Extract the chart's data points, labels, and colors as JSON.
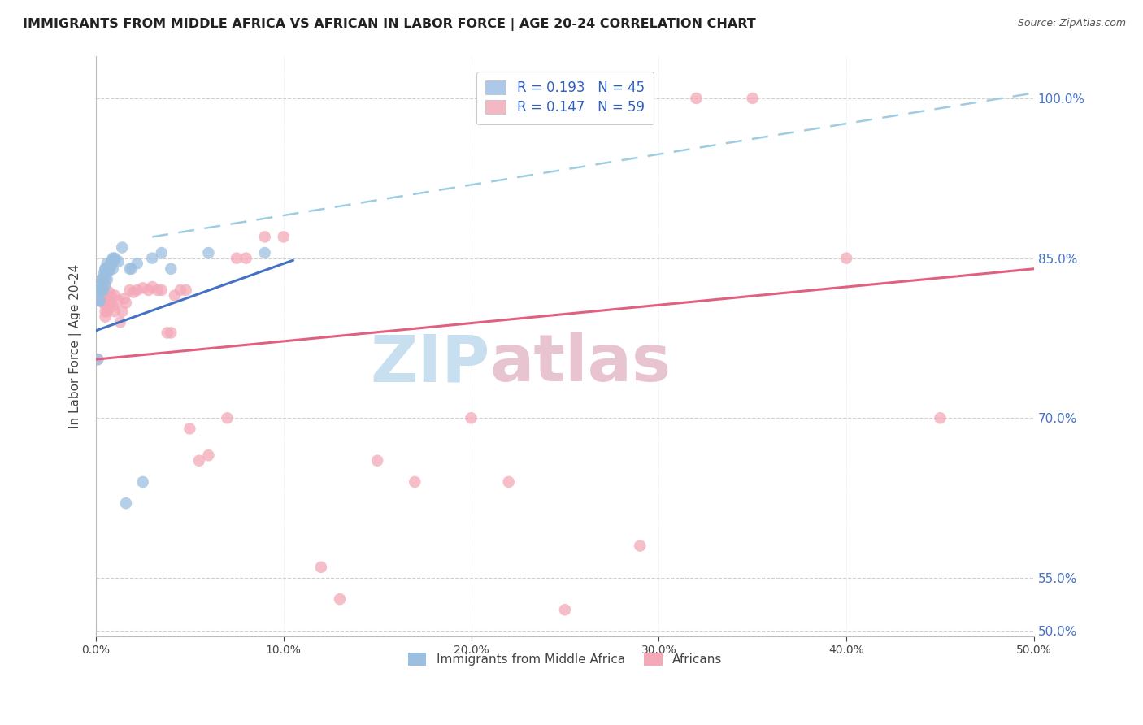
{
  "title": "IMMIGRANTS FROM MIDDLE AFRICA VS AFRICAN IN LABOR FORCE | AGE 20-24 CORRELATION CHART",
  "source": "Source: ZipAtlas.com",
  "ylabel": "In Labor Force | Age 20-24",
  "legend_entry1": {
    "label": "R = 0.193   N = 45",
    "color": "#adc8e8"
  },
  "legend_entry2": {
    "label": "R = 0.147   N = 59",
    "color": "#f4b8c4"
  },
  "blue_scatter_color": "#9bbfe0",
  "pink_scatter_color": "#f4a8b8",
  "blue_line_color": "#4472c4",
  "pink_line_color": "#e06080",
  "dashed_line_color": "#a0cce0",
  "title_color": "#222222",
  "watermark_zip_color": "#c8dff0",
  "watermark_atlas_color": "#e8c4d0",
  "blue_x": [
    0.001,
    0.002,
    0.002,
    0.002,
    0.003,
    0.003,
    0.003,
    0.003,
    0.004,
    0.004,
    0.004,
    0.005,
    0.005,
    0.005,
    0.005,
    0.005,
    0.006,
    0.006,
    0.006,
    0.006,
    0.006,
    0.006,
    0.007,
    0.007,
    0.007,
    0.008,
    0.008,
    0.008,
    0.009,
    0.009,
    0.009,
    0.01,
    0.01,
    0.012,
    0.014,
    0.016,
    0.018,
    0.019,
    0.022,
    0.025,
    0.03,
    0.035,
    0.04,
    0.06,
    0.09
  ],
  "blue_y": [
    0.755,
    0.82,
    0.81,
    0.81,
    0.83,
    0.825,
    0.82,
    0.82,
    0.835,
    0.83,
    0.82,
    0.84,
    0.84,
    0.838,
    0.833,
    0.825,
    0.845,
    0.84,
    0.838,
    0.83,
    0.84,
    0.84,
    0.84,
    0.84,
    0.838,
    0.843,
    0.845,
    0.845,
    0.85,
    0.848,
    0.84,
    0.85,
    0.848,
    0.847,
    0.86,
    0.62,
    0.84,
    0.84,
    0.845,
    0.64,
    0.85,
    0.855,
    0.84,
    0.855,
    0.855
  ],
  "pink_x": [
    0.001,
    0.002,
    0.002,
    0.003,
    0.003,
    0.004,
    0.004,
    0.005,
    0.005,
    0.005,
    0.005,
    0.006,
    0.006,
    0.006,
    0.007,
    0.007,
    0.008,
    0.008,
    0.009,
    0.01,
    0.01,
    0.012,
    0.013,
    0.014,
    0.015,
    0.016,
    0.018,
    0.02,
    0.022,
    0.025,
    0.028,
    0.03,
    0.033,
    0.035,
    0.038,
    0.04,
    0.042,
    0.045,
    0.048,
    0.05,
    0.055,
    0.06,
    0.07,
    0.075,
    0.08,
    0.09,
    0.1,
    0.12,
    0.13,
    0.15,
    0.17,
    0.2,
    0.22,
    0.25,
    0.29,
    0.32,
    0.35,
    0.4,
    0.45
  ],
  "pink_y": [
    0.755,
    0.82,
    0.81,
    0.81,
    0.83,
    0.81,
    0.808,
    0.825,
    0.808,
    0.8,
    0.795,
    0.81,
    0.805,
    0.8,
    0.818,
    0.812,
    0.815,
    0.808,
    0.805,
    0.815,
    0.8,
    0.81,
    0.79,
    0.8,
    0.812,
    0.808,
    0.82,
    0.818,
    0.82,
    0.822,
    0.82,
    0.823,
    0.82,
    0.82,
    0.78,
    0.78,
    0.815,
    0.82,
    0.82,
    0.69,
    0.66,
    0.665,
    0.7,
    0.85,
    0.85,
    0.87,
    0.87,
    0.56,
    0.53,
    0.66,
    0.64,
    0.7,
    0.64,
    0.52,
    0.58,
    1.0,
    1.0,
    0.85,
    0.7
  ],
  "blue_trend_x": [
    0.0,
    0.105
  ],
  "blue_trend_y": [
    0.782,
    0.848
  ],
  "pink_trend_x": [
    0.0,
    0.5
  ],
  "pink_trend_y": [
    0.755,
    0.84
  ],
  "dashed_line_x": [
    0.03,
    0.5
  ],
  "dashed_line_y": [
    0.87,
    1.005
  ],
  "xlim": [
    0.0,
    0.5
  ],
  "ylim": [
    0.495,
    1.04
  ],
  "ytick_vals": [
    0.5,
    0.55,
    0.7,
    0.85,
    1.0
  ],
  "xtick_vals": [
    0.0,
    0.1,
    0.2,
    0.3,
    0.4,
    0.5
  ],
  "figsize": [
    14.06,
    8.92
  ],
  "dpi": 100
}
